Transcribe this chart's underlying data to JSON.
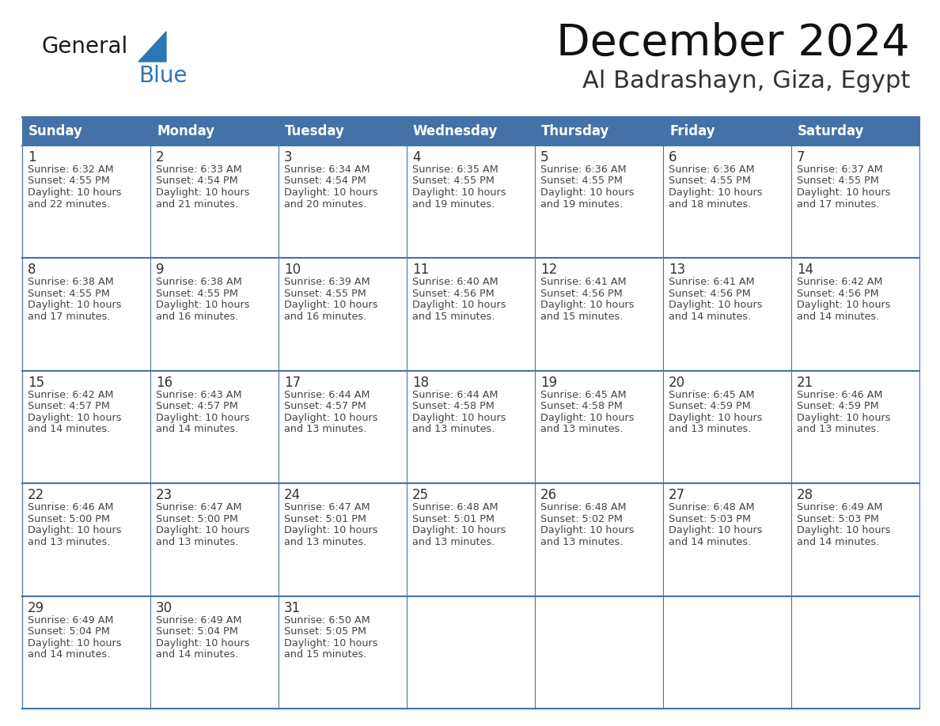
{
  "title": "December 2024",
  "subtitle": "Al Badrashayn, Giza, Egypt",
  "header_bg_color": "#4472A8",
  "header_text_color": "#FFFFFF",
  "day_names": [
    "Sunday",
    "Monday",
    "Tuesday",
    "Wednesday",
    "Thursday",
    "Friday",
    "Saturday"
  ],
  "bg_color": "#FFFFFF",
  "cell_border_color": "#4472A8",
  "day_number_color": "#333333",
  "info_text_color": "#444444",
  "logo_general_color": "#1a1a1a",
  "logo_blue_color": "#2E75B6",
  "weeks": [
    [
      {
        "day": 1,
        "sunrise": "6:32 AM",
        "sunset": "4:55 PM",
        "daylight": "10 hours and 22 minutes."
      },
      {
        "day": 2,
        "sunrise": "6:33 AM",
        "sunset": "4:54 PM",
        "daylight": "10 hours and 21 minutes."
      },
      {
        "day": 3,
        "sunrise": "6:34 AM",
        "sunset": "4:54 PM",
        "daylight": "10 hours and 20 minutes."
      },
      {
        "day": 4,
        "sunrise": "6:35 AM",
        "sunset": "4:55 PM",
        "daylight": "10 hours and 19 minutes."
      },
      {
        "day": 5,
        "sunrise": "6:36 AM",
        "sunset": "4:55 PM",
        "daylight": "10 hours and 19 minutes."
      },
      {
        "day": 6,
        "sunrise": "6:36 AM",
        "sunset": "4:55 PM",
        "daylight": "10 hours and 18 minutes."
      },
      {
        "day": 7,
        "sunrise": "6:37 AM",
        "sunset": "4:55 PM",
        "daylight": "10 hours and 17 minutes."
      }
    ],
    [
      {
        "day": 8,
        "sunrise": "6:38 AM",
        "sunset": "4:55 PM",
        "daylight": "10 hours and 17 minutes."
      },
      {
        "day": 9,
        "sunrise": "6:38 AM",
        "sunset": "4:55 PM",
        "daylight": "10 hours and 16 minutes."
      },
      {
        "day": 10,
        "sunrise": "6:39 AM",
        "sunset": "4:55 PM",
        "daylight": "10 hours and 16 minutes."
      },
      {
        "day": 11,
        "sunrise": "6:40 AM",
        "sunset": "4:56 PM",
        "daylight": "10 hours and 15 minutes."
      },
      {
        "day": 12,
        "sunrise": "6:41 AM",
        "sunset": "4:56 PM",
        "daylight": "10 hours and 15 minutes."
      },
      {
        "day": 13,
        "sunrise": "6:41 AM",
        "sunset": "4:56 PM",
        "daylight": "10 hours and 14 minutes."
      },
      {
        "day": 14,
        "sunrise": "6:42 AM",
        "sunset": "4:56 PM",
        "daylight": "10 hours and 14 minutes."
      }
    ],
    [
      {
        "day": 15,
        "sunrise": "6:42 AM",
        "sunset": "4:57 PM",
        "daylight": "10 hours and 14 minutes."
      },
      {
        "day": 16,
        "sunrise": "6:43 AM",
        "sunset": "4:57 PM",
        "daylight": "10 hours and 14 minutes."
      },
      {
        "day": 17,
        "sunrise": "6:44 AM",
        "sunset": "4:57 PM",
        "daylight": "10 hours and 13 minutes."
      },
      {
        "day": 18,
        "sunrise": "6:44 AM",
        "sunset": "4:58 PM",
        "daylight": "10 hours and 13 minutes."
      },
      {
        "day": 19,
        "sunrise": "6:45 AM",
        "sunset": "4:58 PM",
        "daylight": "10 hours and 13 minutes."
      },
      {
        "day": 20,
        "sunrise": "6:45 AM",
        "sunset": "4:59 PM",
        "daylight": "10 hours and 13 minutes."
      },
      {
        "day": 21,
        "sunrise": "6:46 AM",
        "sunset": "4:59 PM",
        "daylight": "10 hours and 13 minutes."
      }
    ],
    [
      {
        "day": 22,
        "sunrise": "6:46 AM",
        "sunset": "5:00 PM",
        "daylight": "10 hours and 13 minutes."
      },
      {
        "day": 23,
        "sunrise": "6:47 AM",
        "sunset": "5:00 PM",
        "daylight": "10 hours and 13 minutes."
      },
      {
        "day": 24,
        "sunrise": "6:47 AM",
        "sunset": "5:01 PM",
        "daylight": "10 hours and 13 minutes."
      },
      {
        "day": 25,
        "sunrise": "6:48 AM",
        "sunset": "5:01 PM",
        "daylight": "10 hours and 13 minutes."
      },
      {
        "day": 26,
        "sunrise": "6:48 AM",
        "sunset": "5:02 PM",
        "daylight": "10 hours and 13 minutes."
      },
      {
        "day": 27,
        "sunrise": "6:48 AM",
        "sunset": "5:03 PM",
        "daylight": "10 hours and 14 minutes."
      },
      {
        "day": 28,
        "sunrise": "6:49 AM",
        "sunset": "5:03 PM",
        "daylight": "10 hours and 14 minutes."
      }
    ],
    [
      {
        "day": 29,
        "sunrise": "6:49 AM",
        "sunset": "5:04 PM",
        "daylight": "10 hours and 14 minutes."
      },
      {
        "day": 30,
        "sunrise": "6:49 AM",
        "sunset": "5:04 PM",
        "daylight": "10 hours and 14 minutes."
      },
      {
        "day": 31,
        "sunrise": "6:50 AM",
        "sunset": "5:05 PM",
        "daylight": "10 hours and 15 minutes."
      },
      null,
      null,
      null,
      null
    ]
  ]
}
